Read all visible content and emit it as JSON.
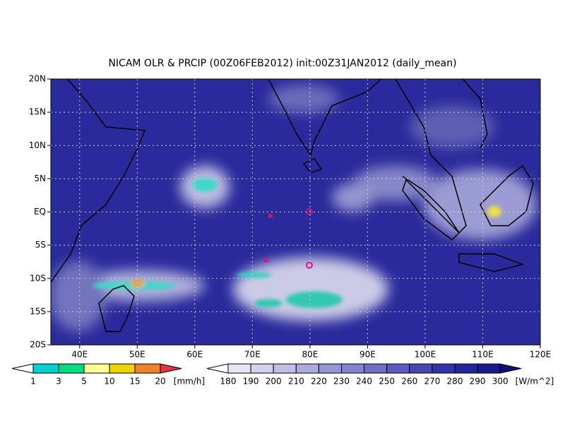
{
  "title": "NICAM OLR & PRCIP (00Z06FEB2012) init:00Z31JAN2012 (daily_mean)",
  "map": {
    "lon_labels": [
      "40E",
      "50E",
      "60E",
      "70E",
      "80E",
      "90E",
      "100E",
      "110E",
      "120E"
    ],
    "lat_labels": [
      "20N",
      "15N",
      "10N",
      "5N",
      "EQ",
      "5S",
      "10S",
      "15S",
      "20S"
    ]
  },
  "precip_colorbar": {
    "levels": [
      "1",
      "3",
      "5",
      "10",
      "15",
      "20"
    ],
    "unit": "[mm/h]"
  },
  "olr_colorbar": {
    "levels": [
      "180",
      "190",
      "200",
      "210",
      "220",
      "230",
      "240",
      "250",
      "260",
      "270",
      "280",
      "290",
      "300"
    ],
    "unit": "[W/m^2]"
  }
}
